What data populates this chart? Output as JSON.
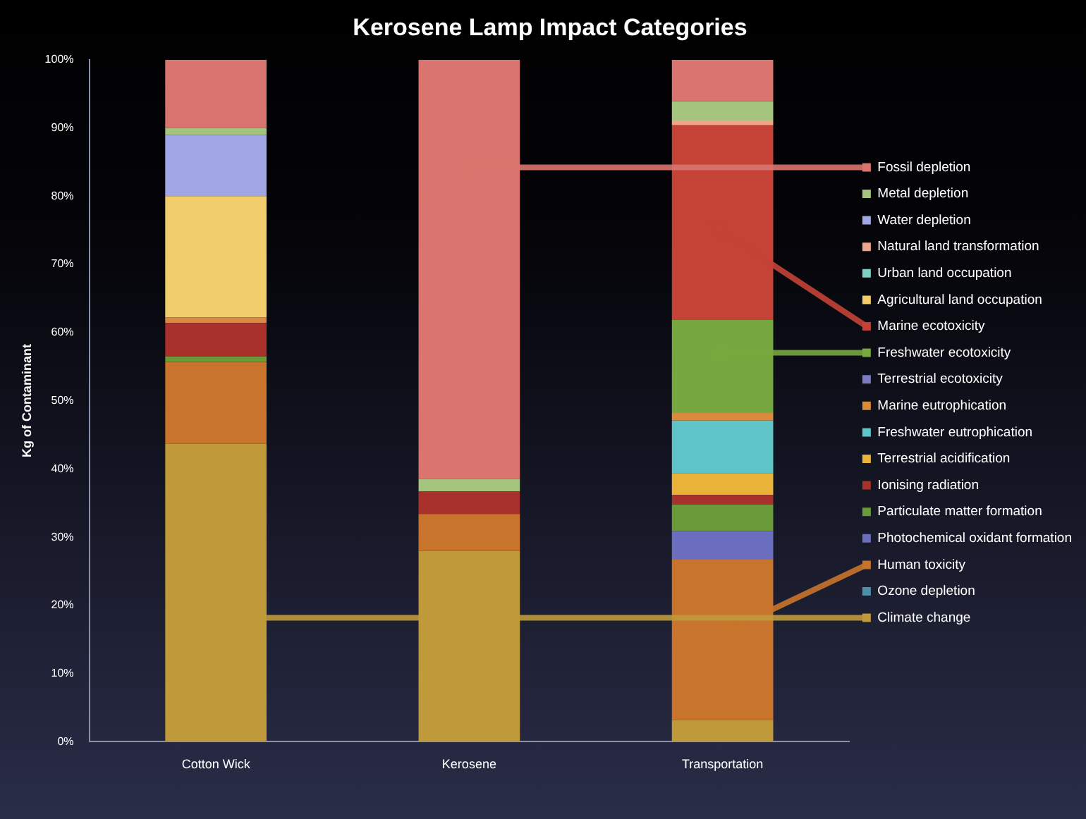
{
  "chart_data": {
    "type": "bar",
    "stacked": true,
    "title": "Kerosene Lamp Impact Categories",
    "ylabel": "Kg of Contaminant",
    "categories": [
      "Cotton Wick",
      "Kerosene",
      "Transportation"
    ],
    "ylim": [
      0,
      100
    ],
    "yticks": [
      {
        "value": 0,
        "label": "0%"
      },
      {
        "value": 10,
        "label": "10%"
      },
      {
        "value": 20,
        "label": "20%"
      },
      {
        "value": 30,
        "label": "30%"
      },
      {
        "value": 40,
        "label": "40%"
      },
      {
        "value": 50,
        "label": "50%"
      },
      {
        "value": 60,
        "label": "60%"
      },
      {
        "value": 70,
        "label": "70%"
      },
      {
        "value": 80,
        "label": "80%"
      },
      {
        "value": 90,
        "label": "90%"
      },
      {
        "value": 100,
        "label": "100%"
      }
    ],
    "grid": false,
    "legend": "right",
    "series": [
      {
        "name": "Climate change",
        "color": "#c09a3a",
        "values": [
          43.7,
          28.0,
          3.2
        ]
      },
      {
        "name": "Ozone depletion",
        "color": "#4f8fa8",
        "values": [
          0,
          0,
          0
        ]
      },
      {
        "name": "Human toxicity",
        "color": "#c8742c",
        "values": [
          12.0,
          5.4,
          23.5
        ]
      },
      {
        "name": "Photochemical oxidant formation",
        "color": "#6c6fbf",
        "values": [
          0,
          0,
          4.2
        ]
      },
      {
        "name": "Particulate matter formation",
        "color": "#6a9a3a",
        "values": [
          0.8,
          0,
          3.9
        ]
      },
      {
        "name": "Ionising radiation",
        "color": "#a8322b",
        "values": [
          4.9,
          3.3,
          1.4
        ]
      },
      {
        "name": "Terrestrial acidification",
        "color": "#e9b33a",
        "values": [
          0,
          0,
          3.2
        ]
      },
      {
        "name": "Freshwater eutrophication",
        "color": "#5fc4c8",
        "values": [
          0,
          0,
          7.7
        ]
      },
      {
        "name": "Marine eutrophication",
        "color": "#d98a3c",
        "values": [
          0.8,
          0,
          1.1
        ]
      },
      {
        "name": "Terrestrial ecotoxicity",
        "color": "#7d7bbf",
        "values": [
          0,
          0,
          0
        ]
      },
      {
        "name": "Freshwater ecotoxicity",
        "color": "#77a83f",
        "values": [
          0,
          0,
          13.7
        ]
      },
      {
        "name": "Marine ecotoxicity",
        "color": "#c44236",
        "values": [
          0,
          0,
          28.5
        ]
      },
      {
        "name": "Agricultural land occupation",
        "color": "#f1cd6e",
        "values": [
          17.8,
          0,
          0
        ]
      },
      {
        "name": "Urban land occupation",
        "color": "#7ecfc4",
        "values": [
          0,
          0,
          0
        ]
      },
      {
        "name": "Natural land transformation",
        "color": "#f0a58a",
        "values": [
          0,
          0,
          0.7
        ]
      },
      {
        "name": "Water depletion",
        "color": "#a0a6e6",
        "values": [
          9.0,
          0,
          0
        ]
      },
      {
        "name": "Metal depletion",
        "color": "#a5c47e",
        "values": [
          1.0,
          1.8,
          2.8
        ]
      },
      {
        "name": "Fossil depletion",
        "color": "#d9756e",
        "values": [
          10.0,
          61.5,
          6.1
        ]
      }
    ]
  }
}
